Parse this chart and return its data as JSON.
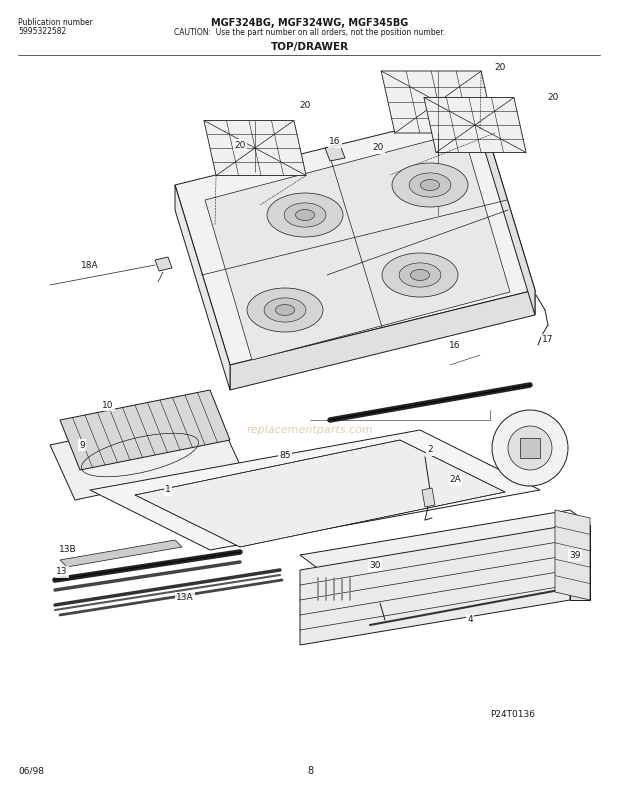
{
  "title_line1": "MGF324BG, MGF324WG, MGF345BG",
  "title_line2": "CAUTION:  Use the part number on all orders, not the position number.",
  "pub_label": "Publication number",
  "pub_number": "5995322582",
  "section_title": "TOP/DRAWER",
  "footer_left": "06/98",
  "footer_center": "8",
  "footer_right": "P24T0136",
  "watermark": "replacementparts.com",
  "bg_color": "#ffffff",
  "lc": "#1a1a1a"
}
